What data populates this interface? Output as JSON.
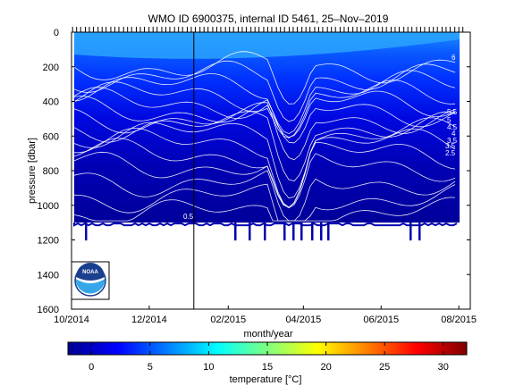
{
  "chart_data": {
    "type": "heatmap",
    "title": "WMO ID 6900375, internal ID 5461, 25–Nov–2019",
    "xlabel": "month/year",
    "ylabel": "pressure [dbar]",
    "ylim": [
      1600,
      0
    ],
    "x_range": [
      "2014-10-01",
      "2015-08-10"
    ],
    "x_ticks": [
      "10/2014",
      "12/2014",
      "02/2015",
      "04/2015",
      "06/2015",
      "08/2015"
    ],
    "x_tick_dates": [
      "2014-10-01",
      "2014-12-01",
      "2015-02-01",
      "2015-04-01",
      "2015-06-01",
      "2015-08-01"
    ],
    "y_ticks": [
      "0",
      "200",
      "400",
      "600",
      "800",
      "1000",
      "1200",
      "1400",
      "1600"
    ],
    "y_tick_values": [
      0,
      200,
      400,
      600,
      800,
      1000,
      1200,
      1400,
      1600
    ],
    "grid": false,
    "colorbar": {
      "label": "temperature [°C]",
      "range": [
        -2,
        32
      ],
      "ticks": [
        "0",
        "5",
        "10",
        "15",
        "20",
        "25",
        "30"
      ],
      "tick_values": [
        0,
        5,
        10,
        15,
        20,
        25,
        30
      ],
      "colormap": "jet"
    },
    "contour_labels": [
      "6",
      "5.5",
      "5",
      "4.5",
      "4",
      "3.5",
      "3.5",
      "2.5",
      "0.5"
    ],
    "profile_dates": [
      "2014-10-05",
      "2014-10-15",
      "2014-10-25",
      "2014-11-04",
      "2014-11-14",
      "2014-11-24",
      "2014-12-04",
      "2014-12-14",
      "2014-12-24",
      "2015-01-03",
      "2015-01-13",
      "2015-01-23",
      "2015-02-02",
      "2015-02-12",
      "2015-02-22",
      "2015-03-04",
      "2015-03-14",
      "2015-03-24",
      "2015-04-03",
      "2015-04-13",
      "2015-04-23",
      "2015-05-03",
      "2015-05-13",
      "2015-05-23",
      "2015-06-02",
      "2015-06-12",
      "2015-06-22",
      "2015-07-02",
      "2015-07-12",
      "2015-07-22",
      "2015-08-01"
    ],
    "max_pressure": 1100,
    "annotation_date": "2015-01-05",
    "approx_temperature": {
      "pressure": [
        0,
        100,
        200,
        300,
        400,
        500,
        600,
        700,
        800,
        900,
        1000,
        1100
      ],
      "temperature": [
        8.0,
        7.0,
        6.0,
        5.5,
        5.0,
        4.5,
        4.2,
        3.8,
        3.5,
        3.2,
        3.0,
        2.5
      ]
    }
  },
  "logo": {
    "text": "NOAA"
  }
}
